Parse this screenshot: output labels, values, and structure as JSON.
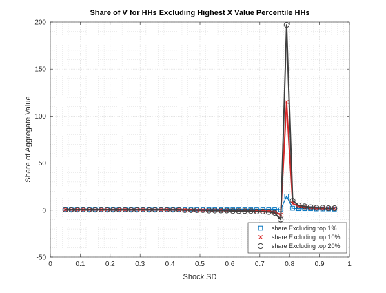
{
  "chart_data": {
    "type": "line",
    "title": "Share of V for HHs Excluding Highest X Value Percentile HHs",
    "xlabel": "Shock SD",
    "ylabel": "Share of Aggregate Value",
    "xlim": [
      0,
      1
    ],
    "ylim": [
      -50,
      200
    ],
    "xticks": [
      "0",
      "0.1",
      "0.2",
      "0.3",
      "0.4",
      "0.5",
      "0.6",
      "0.7",
      "0.8",
      "0.9",
      "1"
    ],
    "yticks": [
      "-50",
      "0",
      "50",
      "100",
      "150",
      "200"
    ],
    "grid": true,
    "minor_grid": true,
    "legend_position": "bottom-right",
    "x": [
      0.05,
      0.07,
      0.09,
      0.11,
      0.13,
      0.15,
      0.17,
      0.19,
      0.21,
      0.23,
      0.25,
      0.27,
      0.29,
      0.31,
      0.33,
      0.35,
      0.37,
      0.39,
      0.41,
      0.43,
      0.45,
      0.47,
      0.49,
      0.51,
      0.53,
      0.55,
      0.57,
      0.59,
      0.61,
      0.63,
      0.65,
      0.67,
      0.69,
      0.71,
      0.73,
      0.75,
      0.77,
      0.79,
      0.81,
      0.83,
      0.85,
      0.87,
      0.89,
      0.91,
      0.93,
      0.95
    ],
    "series": [
      {
        "name": "share Excluding top 1%",
        "marker": "square",
        "color": "#0072BD",
        "values": [
          1,
          1,
          1,
          1,
          1,
          1,
          1,
          1,
          1,
          1,
          1,
          1,
          1,
          1,
          1,
          1,
          1,
          1,
          1,
          1,
          1,
          1,
          1,
          1,
          1,
          1,
          1,
          1,
          1,
          1,
          1,
          1,
          1,
          1,
          1,
          1,
          0.5,
          15,
          2,
          1.5,
          1.5,
          1.5,
          1.2,
          1.2,
          1.2,
          1
        ]
      },
      {
        "name": "share Excluding top 10%",
        "marker": "x",
        "color": "#D62728",
        "values": [
          0.5,
          0.5,
          0.5,
          0.5,
          0.5,
          0.5,
          0.5,
          0.5,
          0.5,
          0.5,
          0.5,
          0.5,
          0.5,
          0.5,
          0.5,
          0.5,
          0.5,
          0.5,
          0.5,
          0.5,
          0.5,
          0.5,
          0,
          0,
          0,
          0,
          0,
          -0.5,
          -0.5,
          -0.5,
          -0.5,
          -0.5,
          -1,
          -1,
          -1,
          -2,
          -5,
          115,
          7,
          4,
          3,
          2.5,
          2,
          2,
          2,
          2
        ]
      },
      {
        "name": "share Excluding top 20%",
        "marker": "circle",
        "color": "#404040",
        "values": [
          0.5,
          0.5,
          0.5,
          0.5,
          0.5,
          0.5,
          0.5,
          0.5,
          0.5,
          0.5,
          0.5,
          0.5,
          0.5,
          0.5,
          0.5,
          0.5,
          0.5,
          0.5,
          0.5,
          0.5,
          0,
          0,
          0,
          0,
          -0.5,
          -0.5,
          -0.5,
          -0.5,
          -1,
          -1,
          -1,
          -1,
          -1.5,
          -1.5,
          -2,
          -3,
          -10,
          197,
          10,
          5,
          4,
          3,
          2.5,
          2.5,
          2,
          2
        ]
      }
    ]
  }
}
